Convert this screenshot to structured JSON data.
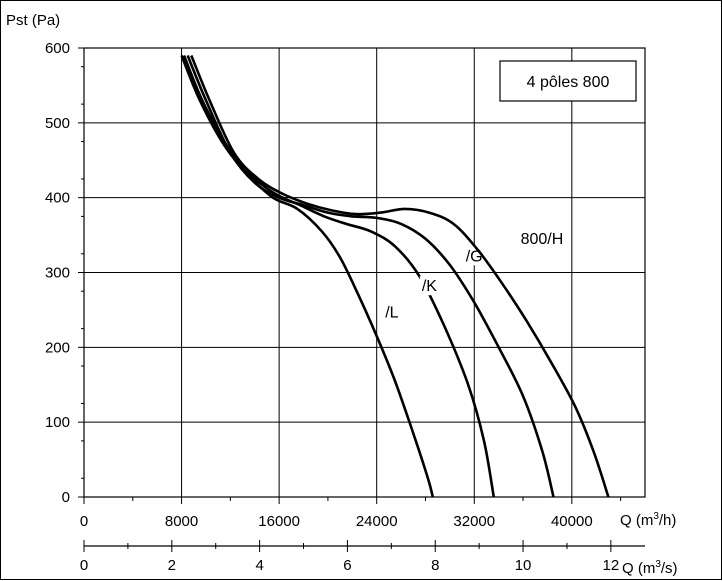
{
  "chart_data": {
    "type": "line",
    "title": "",
    "inset_label": "4 pôles 800",
    "ylabel": "Pst (Pa)",
    "ylim": [
      0,
      600
    ],
    "yticks": [
      0,
      100,
      200,
      300,
      400,
      500,
      600
    ],
    "x_axes": [
      {
        "label_prefix": "Q (m",
        "label_suffix": "/h)",
        "unit": "m3/h",
        "range": [
          0,
          46000
        ],
        "ticks": [
          0,
          8000,
          16000,
          24000,
          32000,
          40000
        ]
      },
      {
        "label_prefix": "Q (m",
        "label_suffix": "/s)",
        "unit": "m3/s",
        "ticks": [
          0,
          2,
          4,
          6,
          8,
          10,
          12
        ]
      }
    ],
    "grid": true,
    "series": [
      {
        "name": "/L",
        "label_at": [
          24700,
          240
        ],
        "points": [
          [
            8000,
            590
          ],
          [
            9500,
            530
          ],
          [
            11500,
            470
          ],
          [
            13500,
            430
          ],
          [
            15500,
            400
          ],
          [
            17500,
            385
          ],
          [
            19500,
            355
          ],
          [
            21000,
            320
          ],
          [
            22500,
            270
          ],
          [
            24000,
            215
          ],
          [
            25500,
            155
          ],
          [
            27000,
            85
          ],
          [
            28200,
            25
          ],
          [
            28600,
            0
          ]
        ]
      },
      {
        "name": "/K",
        "label_at": [
          27700,
          275
        ],
        "points": [
          [
            8200,
            590
          ],
          [
            9700,
            530
          ],
          [
            11700,
            470
          ],
          [
            13700,
            430
          ],
          [
            15700,
            405
          ],
          [
            17700,
            390
          ],
          [
            19700,
            375
          ],
          [
            21500,
            365
          ],
          [
            23500,
            355
          ],
          [
            25500,
            335
          ],
          [
            27500,
            295
          ],
          [
            29500,
            230
          ],
          [
            31500,
            150
          ],
          [
            32800,
            75
          ],
          [
            33600,
            0
          ]
        ]
      },
      {
        "name": "/G",
        "label_at": [
          31300,
          315
        ],
        "points": [
          [
            8500,
            590
          ],
          [
            10000,
            530
          ],
          [
            12000,
            460
          ],
          [
            14000,
            420
          ],
          [
            16000,
            400
          ],
          [
            18000,
            390
          ],
          [
            20000,
            380
          ],
          [
            22000,
            375
          ],
          [
            24000,
            373
          ],
          [
            26000,
            365
          ],
          [
            28000,
            345
          ],
          [
            30000,
            310
          ],
          [
            32000,
            260
          ],
          [
            34000,
            200
          ],
          [
            36000,
            135
          ],
          [
            37600,
            60
          ],
          [
            38500,
            0
          ]
        ]
      },
      {
        "name": "800/H",
        "label_at": [
          35800,
          338
        ],
        "points": [
          [
            8800,
            590
          ],
          [
            10300,
            530
          ],
          [
            12300,
            460
          ],
          [
            14300,
            425
          ],
          [
            16300,
            405
          ],
          [
            18300,
            392
          ],
          [
            20300,
            383
          ],
          [
            22300,
            378
          ],
          [
            24300,
            380
          ],
          [
            26300,
            385
          ],
          [
            28300,
            380
          ],
          [
            30300,
            365
          ],
          [
            32300,
            330
          ],
          [
            34300,
            285
          ],
          [
            36300,
            235
          ],
          [
            38300,
            180
          ],
          [
            40300,
            120
          ],
          [
            41800,
            60
          ],
          [
            43000,
            0
          ]
        ]
      }
    ]
  }
}
